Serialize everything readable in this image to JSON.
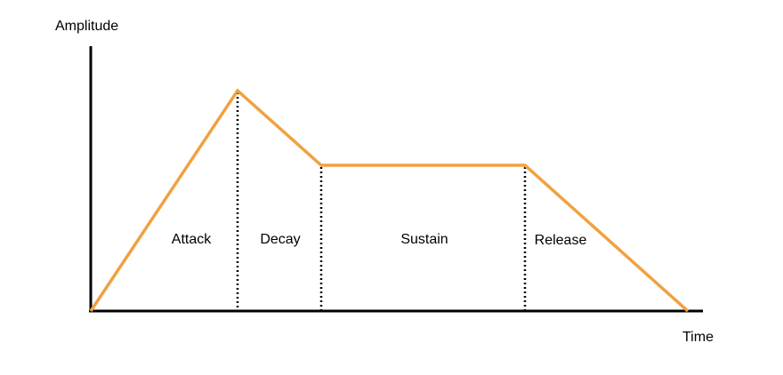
{
  "axes": {
    "y_label": "Amplitude",
    "x_label": "Time"
  },
  "phases": [
    {
      "label": "Attack"
    },
    {
      "label": "Decay"
    },
    {
      "label": "Sustain"
    },
    {
      "label": "Release"
    }
  ]
}
